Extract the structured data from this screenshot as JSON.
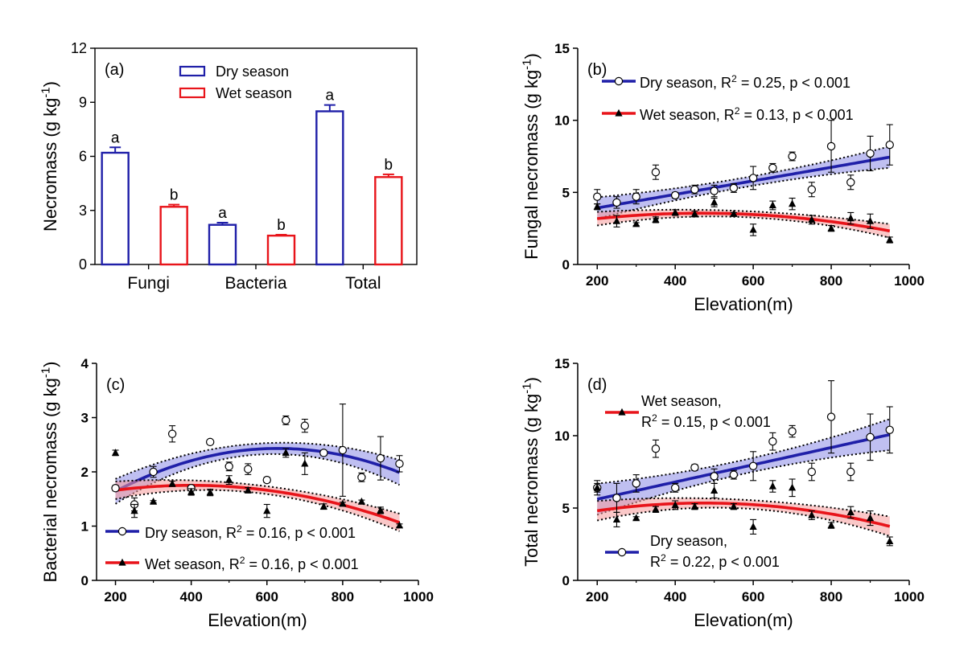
{
  "colors": {
    "dry": "#1f1fa8",
    "wet": "#e8141a",
    "dry_band": "#8a8ae6",
    "wet_band": "#f59a9a",
    "axis": "#000000"
  },
  "chart_data": [
    {
      "id": "a",
      "type": "bar",
      "panel_label": "(a)",
      "ylabel": "Necromass (g kg",
      "ylabel_sup": "-1",
      "ylabel_close": ")",
      "ylim": [
        0,
        12
      ],
      "yticks": [
        "0",
        "3",
        "6",
        "9",
        "12"
      ],
      "categories": [
        "Fungi",
        "Bacteria",
        "Total"
      ],
      "series": [
        {
          "name": "Dry season",
          "color": "#1f1fa8",
          "values": [
            6.2,
            2.2,
            8.5
          ],
          "errors": [
            0.3,
            0.12,
            0.35
          ],
          "letters": [
            "a",
            "a",
            "a"
          ]
        },
        {
          "name": "Wet season",
          "color": "#e8141a",
          "values": [
            3.2,
            1.6,
            4.85
          ],
          "errors": [
            0.12,
            0.05,
            0.15
          ],
          "letters": [
            "b",
            "b",
            "b"
          ]
        }
      ],
      "legend_position": "top-center"
    },
    {
      "id": "b",
      "type": "scatter",
      "panel_label": "(b)",
      "ylabel": "Fungal necromass (g kg",
      "ylabel_sup": "-1",
      "ylabel_close": ")",
      "xlabel": "Elevation(m)",
      "xlim": [
        150,
        1000
      ],
      "ylim": [
        0,
        15
      ],
      "xticks": [
        "200",
        "400",
        "600",
        "800",
        "1000"
      ],
      "yticks": [
        "0",
        "5",
        "10",
        "15"
      ],
      "legend": [
        {
          "series": "dry",
          "text_pre": "Dry season, R",
          "sup": "2",
          "text_post": " = 0.25, p < 0.001"
        },
        {
          "series": "wet",
          "text_pre": "Wet season, R",
          "sup": "2",
          "text_post": " = 0.13, p < 0.001"
        }
      ],
      "series": [
        {
          "name": "dry",
          "x": [
            200,
            250,
            300,
            350,
            400,
            450,
            500,
            550,
            600,
            650,
            700,
            750,
            800,
            850,
            900,
            950
          ],
          "y": [
            4.7,
            4.3,
            4.7,
            6.4,
            4.8,
            5.2,
            5.1,
            5.3,
            6.0,
            6.7,
            7.5,
            5.2,
            8.2,
            5.7,
            7.7,
            8.3
          ],
          "err": [
            0.5,
            0.4,
            0.5,
            0.5,
            0.2,
            0.3,
            0.4,
            0.3,
            0.8,
            0.3,
            0.3,
            0.5,
            1.8,
            0.5,
            1.2,
            1.4
          ],
          "fit": {
            "kind": "linear",
            "coef": [
              2.98,
              0.0047
            ],
            "band": 0.55
          }
        },
        {
          "name": "wet",
          "x": [
            200,
            250,
            300,
            350,
            400,
            450,
            500,
            550,
            600,
            650,
            700,
            750,
            800,
            850,
            900,
            950
          ],
          "y": [
            4.0,
            3.0,
            2.8,
            3.1,
            3.6,
            3.5,
            4.3,
            3.5,
            2.4,
            4.1,
            4.2,
            3.1,
            2.5,
            3.2,
            3.0,
            1.7
          ],
          "err": [
            0.2,
            0.4,
            0.1,
            0.2,
            0.2,
            0.2,
            0.3,
            0.1,
            0.4,
            0.3,
            0.4,
            0.3,
            0.2,
            0.4,
            0.5,
            0.2
          ],
          "fit": {
            "kind": "quadratic",
            "coef": [
              2.4,
              0.00494,
              -5.28e-06
            ],
            "band": 0.35
          }
        }
      ]
    },
    {
      "id": "c",
      "type": "scatter",
      "panel_label": "(c)",
      "ylabel": "Bacterial necromass (g kg",
      "ylabel_sup": "-1",
      "ylabel_close": ")",
      "xlabel": "Elevation(m)",
      "xlim": [
        150,
        1000
      ],
      "ylim": [
        0,
        4
      ],
      "xticks": [
        "200",
        "400",
        "600",
        "800",
        "1000"
      ],
      "yticks": [
        "0",
        "1",
        "2",
        "3",
        "4"
      ],
      "legend": [
        {
          "series": "dry",
          "text_pre": "Dry season, R",
          "sup": "2",
          "text_post": " = 0.16, p < 0.001"
        },
        {
          "series": "wet",
          "text_pre": "Wet season, R",
          "sup": "2",
          "text_post": " = 0.16, p < 0.001"
        }
      ],
      "series": [
        {
          "name": "dry",
          "x": [
            200,
            250,
            300,
            350,
            400,
            450,
            500,
            550,
            600,
            650,
            700,
            750,
            800,
            850,
            900,
            950
          ],
          "y": [
            1.7,
            1.4,
            2.0,
            2.7,
            1.7,
            2.55,
            2.1,
            2.05,
            1.85,
            2.95,
            2.85,
            2.35,
            2.4,
            1.9,
            2.25,
            2.15
          ],
          "err": [
            0.05,
            0.12,
            0.1,
            0.15,
            0.05,
            0.03,
            0.08,
            0.1,
            0.05,
            0.08,
            0.12,
            0.05,
            0.85,
            0.08,
            0.4,
            0.15
          ],
          "fit": {
            "kind": "quadratic",
            "coef": [
              0.73,
              0.00541,
              -4.3e-06
            ],
            "band": 0.17
          }
        },
        {
          "name": "wet",
          "x": [
            200,
            250,
            300,
            350,
            400,
            450,
            500,
            550,
            600,
            650,
            700,
            750,
            800,
            850,
            900,
            950
          ],
          "y": [
            2.35,
            1.28,
            1.45,
            1.78,
            1.63,
            1.62,
            1.85,
            1.66,
            1.28,
            2.35,
            2.15,
            1.36,
            1.41,
            1.45,
            1.29,
            1.01
          ],
          "err": [
            0.05,
            0.12,
            0.02,
            0.05,
            0.06,
            0.06,
            0.08,
            0.05,
            0.12,
            0.08,
            0.2,
            0.05,
            0.03,
            0.03,
            0.06,
            0.03
          ],
          "fit": {
            "kind": "quadratic",
            "coef": [
              1.387,
              0.00182,
              -2.27e-06
            ],
            "band": 0.12
          }
        }
      ]
    },
    {
      "id": "d",
      "type": "scatter",
      "panel_label": "(d)",
      "ylabel": "Total necromass (g kg",
      "ylabel_sup": "-1",
      "ylabel_close": ")",
      "xlabel": "Elevation(m)",
      "xlim": [
        150,
        1000
      ],
      "ylim": [
        0,
        15
      ],
      "xticks": [
        "200",
        "400",
        "600",
        "800",
        "1000"
      ],
      "yticks": [
        "0",
        "5",
        "10",
        "15"
      ],
      "legend": [
        {
          "series": "wet",
          "text_pre": "Wet season,",
          "line2_pre": "R",
          "sup": "2",
          "text_post": " = 0.15, p < 0.001"
        },
        {
          "series": "dry",
          "text_pre": "Dry season,",
          "line2_pre": "R",
          "sup": "2",
          "text_post": " = 0.22, p < 0.001"
        }
      ],
      "series": [
        {
          "name": "dry",
          "x": [
            200,
            250,
            300,
            350,
            400,
            450,
            500,
            550,
            600,
            650,
            700,
            750,
            800,
            850,
            900,
            950
          ],
          "y": [
            6.4,
            5.7,
            6.7,
            9.1,
            6.4,
            7.8,
            7.2,
            7.3,
            7.9,
            9.6,
            10.3,
            7.5,
            11.3,
            7.5,
            9.9,
            10.4
          ],
          "err": [
            0.5,
            1.0,
            0.6,
            0.6,
            0.3,
            0.2,
            0.5,
            0.3,
            1.0,
            0.6,
            0.4,
            0.6,
            2.5,
            0.6,
            1.6,
            1.6
          ],
          "fit": {
            "kind": "linear",
            "coef": [
              4.42,
              0.00595
            ],
            "band": 0.8
          }
        },
        {
          "name": "wet",
          "x": [
            200,
            250,
            300,
            350,
            400,
            450,
            500,
            550,
            600,
            650,
            700,
            750,
            800,
            850,
            900,
            950
          ],
          "y": [
            6.4,
            4.2,
            4.3,
            4.9,
            5.2,
            5.1,
            6.2,
            5.1,
            3.7,
            6.5,
            6.4,
            4.5,
            3.8,
            4.7,
            4.3,
            2.7
          ],
          "err": [
            0.3,
            0.5,
            0.1,
            0.2,
            0.3,
            0.2,
            0.5,
            0.2,
            0.5,
            0.4,
            0.6,
            0.3,
            0.2,
            0.4,
            0.5,
            0.3
          ],
          "fit": {
            "kind": "quadratic",
            "coef": [
              3.75,
              0.00673,
              -7.1e-06
            ],
            "band": 0.5
          }
        }
      ]
    }
  ]
}
